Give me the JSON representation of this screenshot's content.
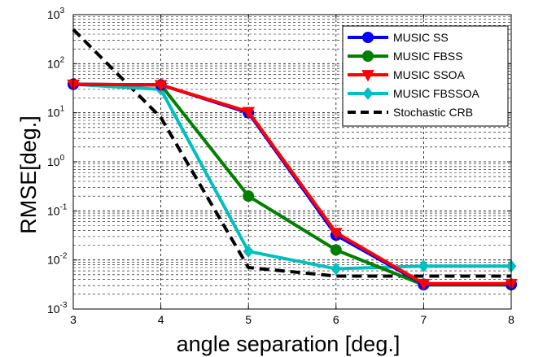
{
  "chart_data": {
    "type": "line",
    "title": "",
    "xlabel": "angle separation [deg.]",
    "ylabel": "RMSE[deg.]",
    "xlim": [
      3,
      8
    ],
    "ylim": [
      0.001,
      1000
    ],
    "yscale": "log",
    "grid": true,
    "xticks": [
      3,
      4,
      5,
      6,
      7,
      8
    ],
    "xtick_labels": [
      "3",
      "4",
      "5",
      "6",
      "7",
      "8"
    ],
    "yticks": [
      0.001,
      0.01,
      0.1,
      1,
      10,
      100,
      1000
    ],
    "ytick_base": [
      "10",
      "10",
      "10",
      "10",
      "10",
      "10",
      "10"
    ],
    "ytick_exp": [
      "-3",
      "-2",
      "-1",
      "0",
      "1",
      "2",
      "3"
    ],
    "legend_position": "top-right",
    "x": [
      3,
      4,
      5,
      6,
      7,
      8
    ],
    "series": [
      {
        "name": "MUSIC SS",
        "color": "#0000ff",
        "marker": "circle",
        "dash": "solid",
        "values": [
          38,
          37,
          10,
          0.032,
          0.0032,
          0.0032
        ]
      },
      {
        "name": "MUSIC FBSS",
        "color": "#007f00",
        "marker": "circle",
        "dash": "solid",
        "values": [
          38,
          37,
          0.2,
          0.016,
          0.0031,
          0.0031
        ]
      },
      {
        "name": "MUSIC SSOA",
        "color": "#ff0000",
        "marker": "triangle-down",
        "dash": "solid",
        "values": [
          38,
          37,
          10.5,
          0.036,
          0.0033,
          0.0033
        ]
      },
      {
        "name": "MUSIC FBSSOA",
        "color": "#00bfbf",
        "marker": "diamond",
        "dash": "solid",
        "values": [
          38,
          30,
          0.015,
          0.0066,
          0.0075,
          0.0075
        ]
      },
      {
        "name": "Stochastic CRB",
        "color": "#000000",
        "marker": "none",
        "dash": "dashed",
        "values": [
          500,
          8,
          0.007,
          0.0047,
          0.0047,
          0.0047
        ]
      }
    ]
  }
}
